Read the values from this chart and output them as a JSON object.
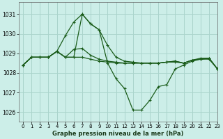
{
  "title": "Graphe pression niveau de la mer (hPa)",
  "background_color": "#cceee8",
  "grid_color": "#aad4cc",
  "line_color": "#1a5c1a",
  "xlim": [
    -0.5,
    23
  ],
  "ylim": [
    1025.5,
    1031.6
  ],
  "yticks": [
    1026,
    1027,
    1028,
    1029,
    1030,
    1031
  ],
  "xticks": [
    0,
    1,
    2,
    3,
    4,
    5,
    6,
    7,
    8,
    9,
    10,
    11,
    12,
    13,
    14,
    15,
    16,
    17,
    18,
    19,
    20,
    21,
    22,
    23
  ],
  "series": [
    [
      1028.4,
      1028.8,
      1028.8,
      1028.8,
      1029.1,
      1029.9,
      1030.6,
      1031.0,
      1030.5,
      1030.2,
      1028.5,
      1027.7,
      1027.2,
      1026.1,
      1026.1,
      1026.6,
      1027.3,
      1027.4,
      1028.2,
      1028.4,
      1028.6,
      1028.7,
      1028.7,
      1028.2
    ],
    [
      1028.4,
      1028.8,
      1028.8,
      1028.8,
      1029.1,
      1028.8,
      1028.8,
      1028.8,
      1028.7,
      1028.6,
      1028.55,
      1028.5,
      1028.5,
      1028.5,
      1028.5,
      1028.5,
      1028.5,
      1028.55,
      1028.55,
      1028.5,
      1028.65,
      1028.7,
      1028.75,
      1028.2
    ],
    [
      1028.4,
      1028.8,
      1028.8,
      1028.8,
      1029.1,
      1028.8,
      1029.2,
      1029.25,
      1028.9,
      1028.7,
      1028.6,
      1028.55,
      1028.5,
      1028.5,
      1028.5,
      1028.5,
      1028.5,
      1028.55,
      1028.6,
      1028.5,
      1028.65,
      1028.7,
      1028.75,
      1028.2
    ],
    [
      1028.4,
      1028.8,
      1028.8,
      1028.8,
      1029.1,
      1028.8,
      1028.8,
      1031.0,
      1030.5,
      1030.2,
      1029.4,
      1028.8,
      1028.6,
      1028.55,
      1028.5,
      1028.5,
      1028.5,
      1028.55,
      1028.6,
      1028.5,
      1028.65,
      1028.75,
      1028.75,
      1028.2
    ]
  ]
}
